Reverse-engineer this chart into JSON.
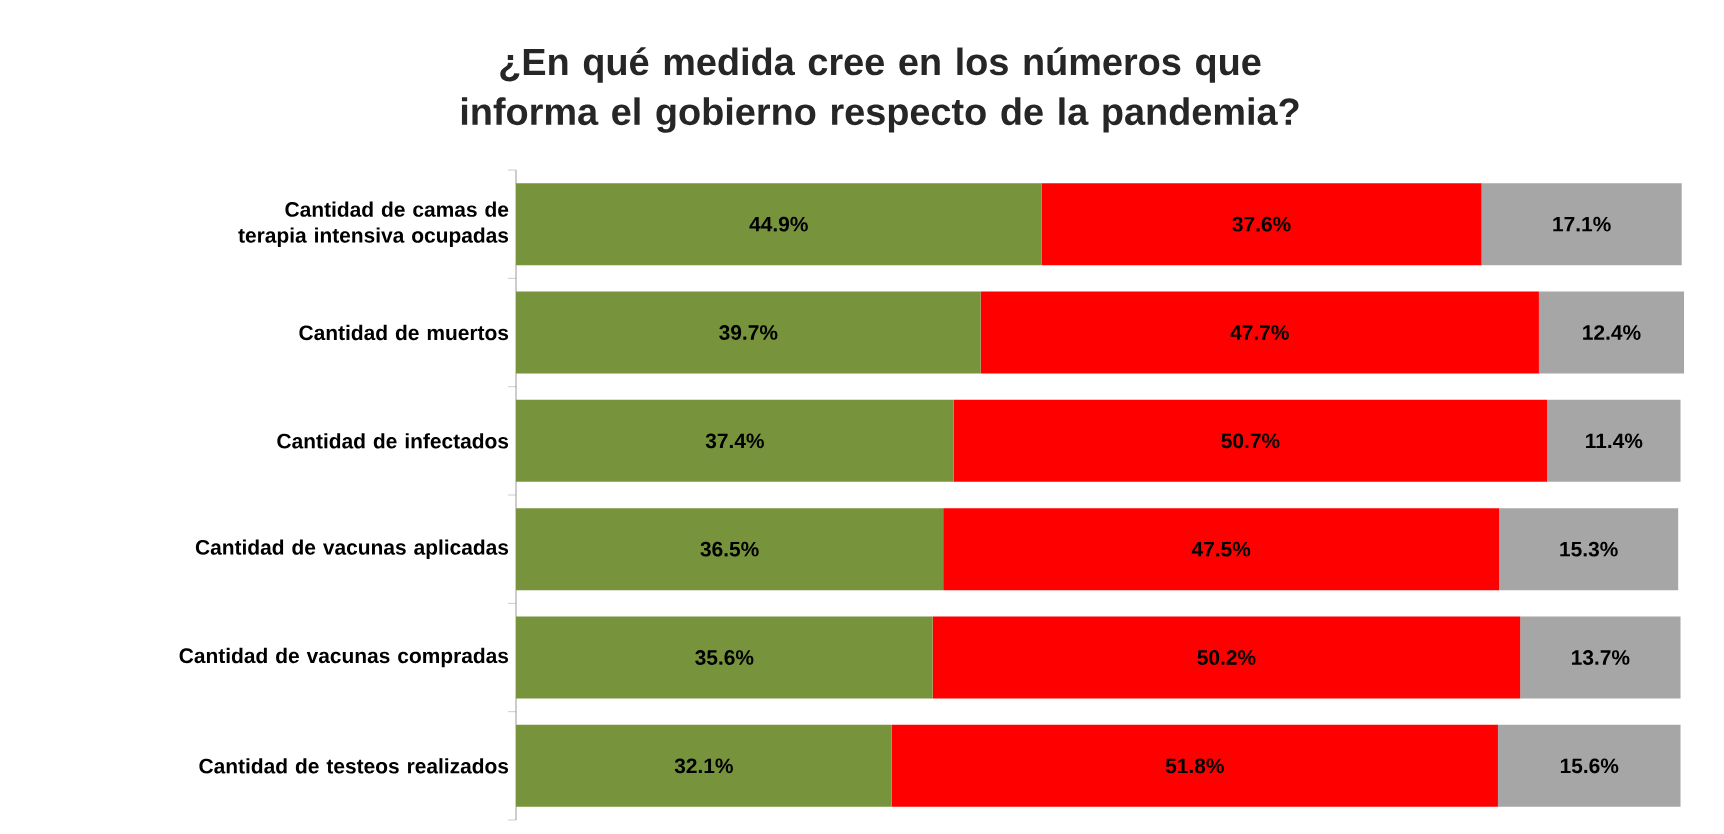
{
  "chart_data": {
    "type": "bar",
    "orientation": "horizontal",
    "stacked": true,
    "title": "¿En qué medida cree en los números que informa el gobierno respecto de la pandemia?",
    "categories": [
      "Cantidad de camas de terapia intensiva ocupadas",
      "Cantidad de muertos",
      "Cantidad de infectados",
      "Cantidad de vacunas aplicadas",
      "Cantidad de vacunas compradas",
      "Cantidad de testeos realizados"
    ],
    "tick_labels": "y",
    "series": [
      {
        "color": "#77933c",
        "values": [
          44.9,
          39.7,
          37.4,
          36.5,
          35.6,
          32.1
        ],
        "value_labels": [
          "44.9%",
          "39.7%",
          "37.4%",
          "36.5%",
          "35.6%",
          "32.1%"
        ]
      },
      {
        "color": "#ff0000",
        "values": [
          37.6,
          47.7,
          50.7,
          47.5,
          50.2,
          51.8
        ],
        "value_labels": [
          "37.6%",
          "47.7%",
          "50.7%",
          "47.5%",
          "50.2%",
          "51.8%"
        ]
      },
      {
        "color": "#a6a6a6",
        "values": [
          17.1,
          12.4,
          11.4,
          15.3,
          13.7,
          15.6
        ],
        "value_labels": [
          "17.1%",
          "12.4%",
          "11.4%",
          "15.3%",
          "13.7%",
          "15.6%"
        ]
      }
    ]
  }
}
